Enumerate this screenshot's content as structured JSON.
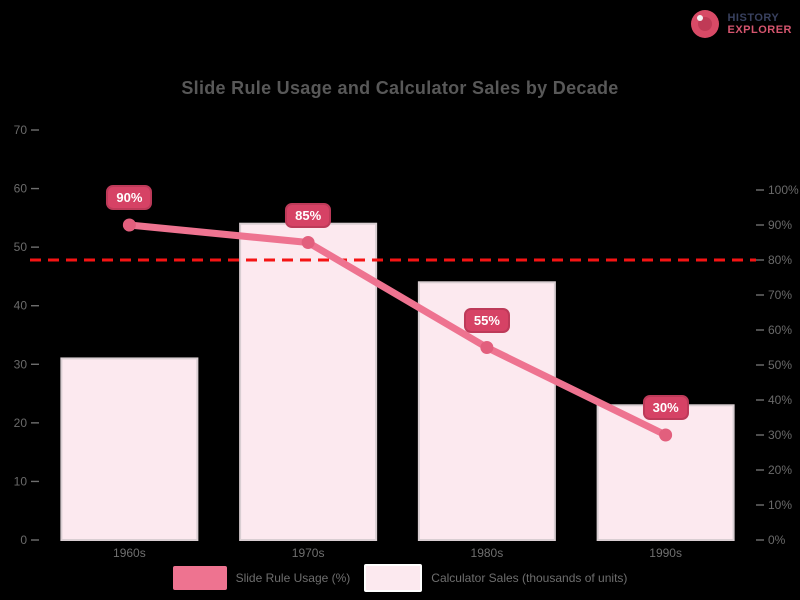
{
  "logo": {
    "icon": "globe-icon",
    "line1": "HISTORY",
    "line2": "EXPLORER",
    "line1_color": "#39415f",
    "line2_color": "#d5556e"
  },
  "title": "Slide Rule Usage and Calculator Sales by Decade",
  "chart_data": {
    "type": "combo-bar-line",
    "categories": [
      "1960s",
      "1970s",
      "1980s",
      "1990s"
    ],
    "series": [
      {
        "name": "Slide Rule Usage (%)",
        "type": "line",
        "axis": "right",
        "color": "#ee7390",
        "marker_color": "#e25f7d",
        "values": [
          90,
          85,
          55,
          30
        ],
        "point_labels": [
          "90%",
          "85%",
          "55%",
          "30%"
        ]
      },
      {
        "name": "Calculator Sales (thousands of units)",
        "type": "bar",
        "axis": "left",
        "color": "#fce9ef",
        "border_color": "#d9ced2",
        "values": [
          31,
          54,
          44,
          23
        ]
      }
    ],
    "left_axis": {
      "min": 0,
      "max": 70,
      "tick_values": [
        70,
        60,
        50,
        40,
        30,
        20,
        10,
        0
      ],
      "tick_labels": [
        "70",
        "60",
        "50",
        "40",
        "30",
        "20",
        "10",
        "0"
      ]
    },
    "right_axis": {
      "min": 0,
      "max": 100,
      "tick_values": [
        100,
        90,
        80,
        70,
        60,
        50,
        40,
        30,
        20,
        10,
        0
      ],
      "tick_labels": [
        "100%",
        "90%",
        "80%",
        "70%",
        "60%",
        "50%",
        "40%",
        "30%",
        "20%",
        "10%",
        "0%"
      ]
    },
    "threshold": {
      "value": 80,
      "axis": "right",
      "color": "#f51414"
    },
    "badge": {
      "bg": "#d64265",
      "border": "#bd3a59",
      "text_color": "#ffffff"
    },
    "legend_position": "bottom",
    "grid": false,
    "background": "#000000"
  },
  "legend": [
    {
      "label": "Slide Rule Usage (%)",
      "color": "#ee7390",
      "border": "none"
    },
    {
      "label": "Calculator Sales (thousands of units)",
      "color": "#fce9ef",
      "border": "2px solid #ffffff"
    }
  ]
}
